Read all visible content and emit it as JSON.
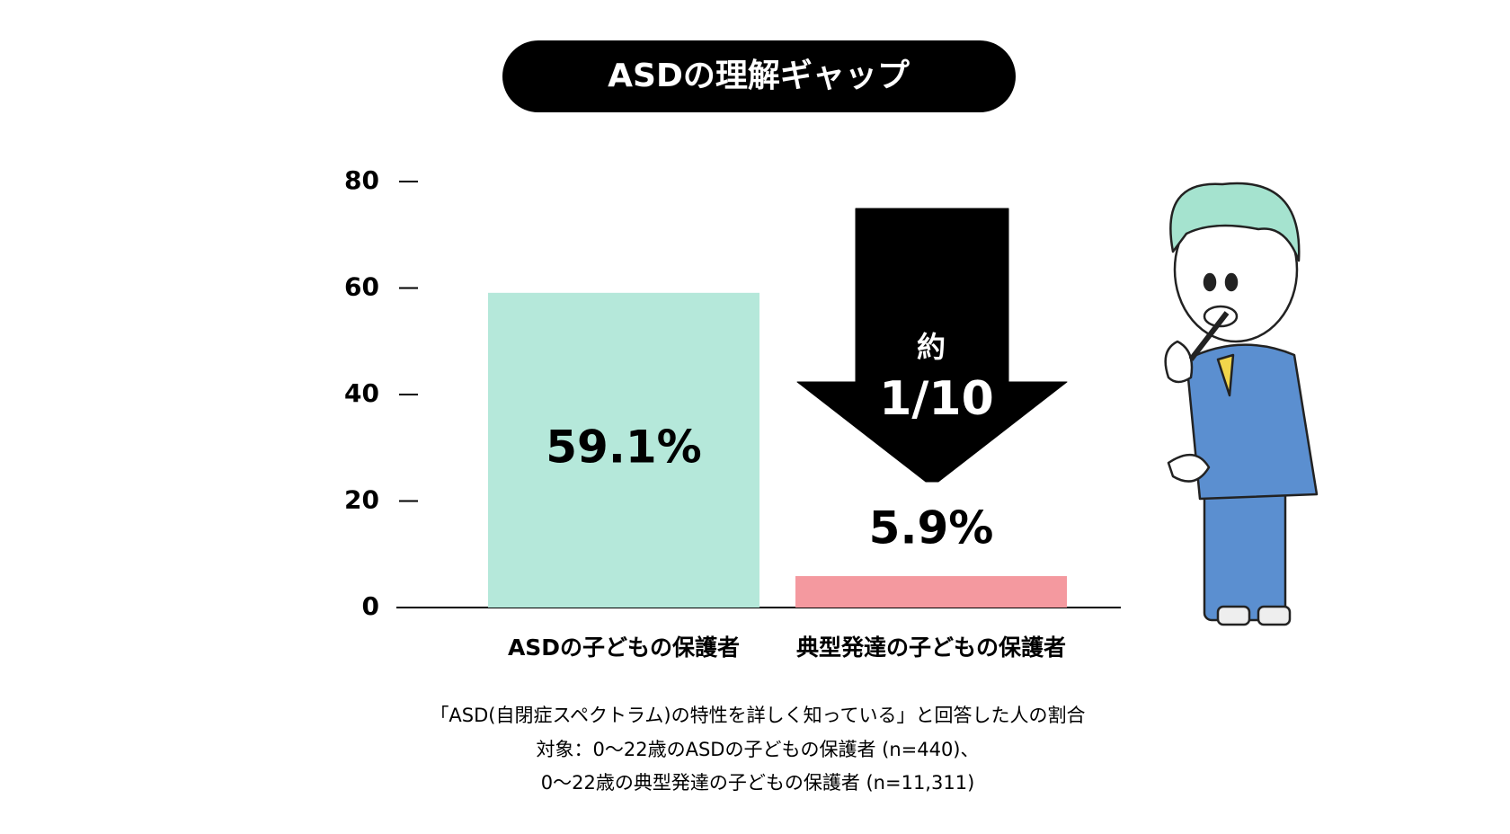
{
  "chart_data": {
    "type": "bar",
    "title": "ASDの理解ギャップ",
    "categories": [
      "ASDの子どもの保護者",
      "典型発達の子どもの保護者"
    ],
    "values": [
      59.1,
      5.9
    ],
    "value_labels": [
      "59.1%",
      "5.9%"
    ],
    "colors": [
      "#b5e8da",
      "#f4999f"
    ],
    "ylim": [
      0,
      80
    ],
    "yticks": [
      0,
      20,
      40,
      60,
      80
    ],
    "annotations": [
      "約",
      "1/10"
    ],
    "notes": [
      "「ASD(自閉症スペクトラム)の特性を詳しく知っている」と回答した人の割合",
      "対象：0〜22歳のASDの子どもの保護者 (n=440)、",
      "0〜22歳の典型発達の子どもの保護者 (n=11,311)"
    ]
  }
}
